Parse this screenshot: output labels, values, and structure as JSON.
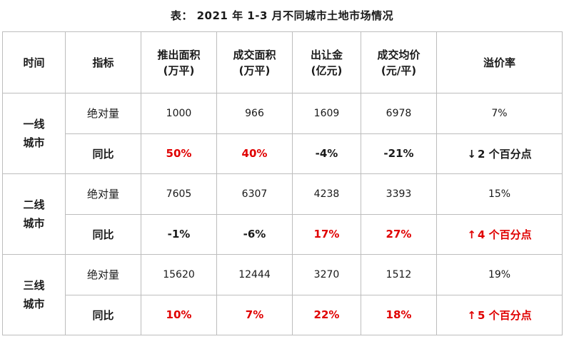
{
  "title": "表： 2021 年 1-3 月不同城市土地市场情况",
  "header": {
    "col_time": "时间",
    "col_metric": "指标",
    "col_supply": [
      "推出面积",
      "(万平)"
    ],
    "col_deal": [
      "成交面积",
      "(万平)"
    ],
    "col_fee": [
      "出让金",
      "(亿元)"
    ],
    "col_price": [
      "成交均价",
      "(元/平)"
    ],
    "col_premium": "溢价率"
  },
  "colors": {
    "increase": "#e00000",
    "decrease": "#1a1a1a"
  },
  "rows": [
    {
      "region": [
        "一线",
        "城市"
      ],
      "abs": {
        "label": "绝对量",
        "supply": "1000",
        "deal": "966",
        "fee": "1609",
        "price": "6978",
        "premium": "7%"
      },
      "yoy": {
        "label": "同比",
        "supply": "50%",
        "deal": "40%",
        "fee": "-4%",
        "price": "-21%",
        "premium_arrow": "↓",
        "premium": "2 个百分点"
      }
    },
    {
      "region": [
        "二线",
        "城市"
      ],
      "abs": {
        "label": "绝对量",
        "supply": "7605",
        "deal": "6307",
        "fee": "4238",
        "price": "3393",
        "premium": "15%"
      },
      "yoy": {
        "label": "同比",
        "supply": "-1%",
        "deal": "-6%",
        "fee": "17%",
        "price": "27%",
        "premium_arrow": "↑",
        "premium": "4 个百分点"
      }
    },
    {
      "region": [
        "三线",
        "城市"
      ],
      "abs": {
        "label": "绝对量",
        "supply": "15620",
        "deal": "12444",
        "fee": "3270",
        "price": "1512",
        "premium": "19%"
      },
      "yoy": {
        "label": "同比",
        "supply": "10%",
        "deal": "7%",
        "fee": "22%",
        "price": "18%",
        "premium_arrow": "↑",
        "premium": "5 个百分点"
      }
    }
  ]
}
